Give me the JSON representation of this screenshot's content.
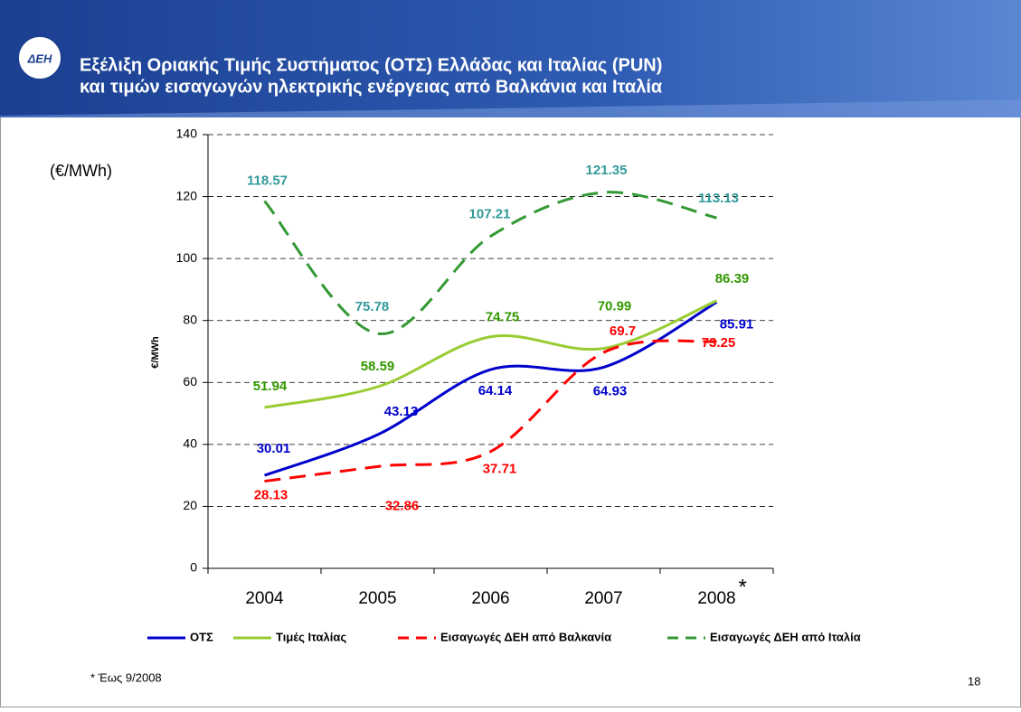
{
  "header": {
    "title_lines": [
      "Εξέλιξη Οριακής Τιμής Συστήματος (ΟΤΣ) Ελλάδας και Ιταλίας (PUN)",
      "και τιμών εισαγωγών ηλεκτρικής ενέργειας από Βαλκάνια και Ιταλία"
    ],
    "logo_text": "ΔΕΗ"
  },
  "chart_data": {
    "type": "line",
    "unit_note": "(€/MWh)",
    "y_label": "€/MWh",
    "categories": [
      "2004",
      "2005",
      "2006",
      "2007",
      "2008"
    ],
    "category_mark": "*",
    "ylim": [
      0,
      140
    ],
    "yticks": [
      0,
      20,
      40,
      60,
      80,
      100,
      120,
      140
    ],
    "grid": true,
    "series": [
      {
        "name": "ΟΤΣ",
        "color": "#0000cc",
        "label_color": "#0000cc",
        "dashed": false,
        "values": [
          30.01,
          43.13,
          64.14,
          64.93,
          85.91
        ]
      },
      {
        "name": "Τιμές Ιταλίας",
        "color": "#99cc33",
        "label_color": "#339900",
        "dashed": false,
        "values": [
          51.94,
          58.59,
          74.75,
          70.99,
          86.39
        ]
      },
      {
        "name": "Εισαγωγές ΔΕΗ από  Βαλκανία",
        "color": "#ff0000",
        "label_color": "#ff0000",
        "dashed": true,
        "values": [
          28.13,
          32.86,
          37.71,
          69.7,
          73.25
        ]
      },
      {
        "name": "Εισαγωγές ΔΕΗ από Ιταλία",
        "color": "#339933",
        "label_color": "#339999",
        "dashed": true,
        "values": [
          118.57,
          75.78,
          107.21,
          121.35,
          113.13
        ]
      }
    ]
  },
  "footnote": "* Έως 9/2008",
  "page_number": "18"
}
